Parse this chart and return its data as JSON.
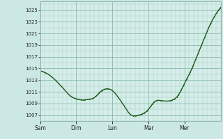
{
  "bg_color": "#cce8e4",
  "plot_bg_color": "#d5ede8",
  "line_color": "#1a5c1a",
  "grid_minor_color": "#a8cfc8",
  "grid_major_color": "#88b8b0",
  "yticks": [
    1007,
    1009,
    1011,
    1013,
    1015,
    1017,
    1019,
    1021,
    1023,
    1025
  ],
  "xtick_labels": [
    "Sam",
    "Dim",
    "Lun",
    "Mar",
    "Mer"
  ],
  "ymin": 1006.0,
  "ymax": 1026.5,
  "line_width": 1.0,
  "marker_size": 1.2,
  "xp": [
    0,
    4,
    8,
    12,
    16,
    20,
    24,
    28,
    32,
    36,
    40,
    44,
    48,
    52,
    56,
    60,
    64,
    68,
    72,
    76,
    80,
    84,
    88,
    92,
    96,
    100,
    104,
    108,
    112,
    116,
    120
  ],
  "yp": [
    1014.6,
    1014.2,
    1013.5,
    1012.5,
    1011.4,
    1010.3,
    1009.8,
    1009.6,
    1009.7,
    1010.0,
    1011.0,
    1011.5,
    1011.2,
    1010.0,
    1008.5,
    1007.1,
    1006.9,
    1007.2,
    1008.0,
    1009.3,
    1009.5,
    1009.4,
    1009.6,
    1010.5,
    1012.5,
    1014.5,
    1017.0,
    1019.5,
    1022.0,
    1024.0,
    1025.5
  ]
}
